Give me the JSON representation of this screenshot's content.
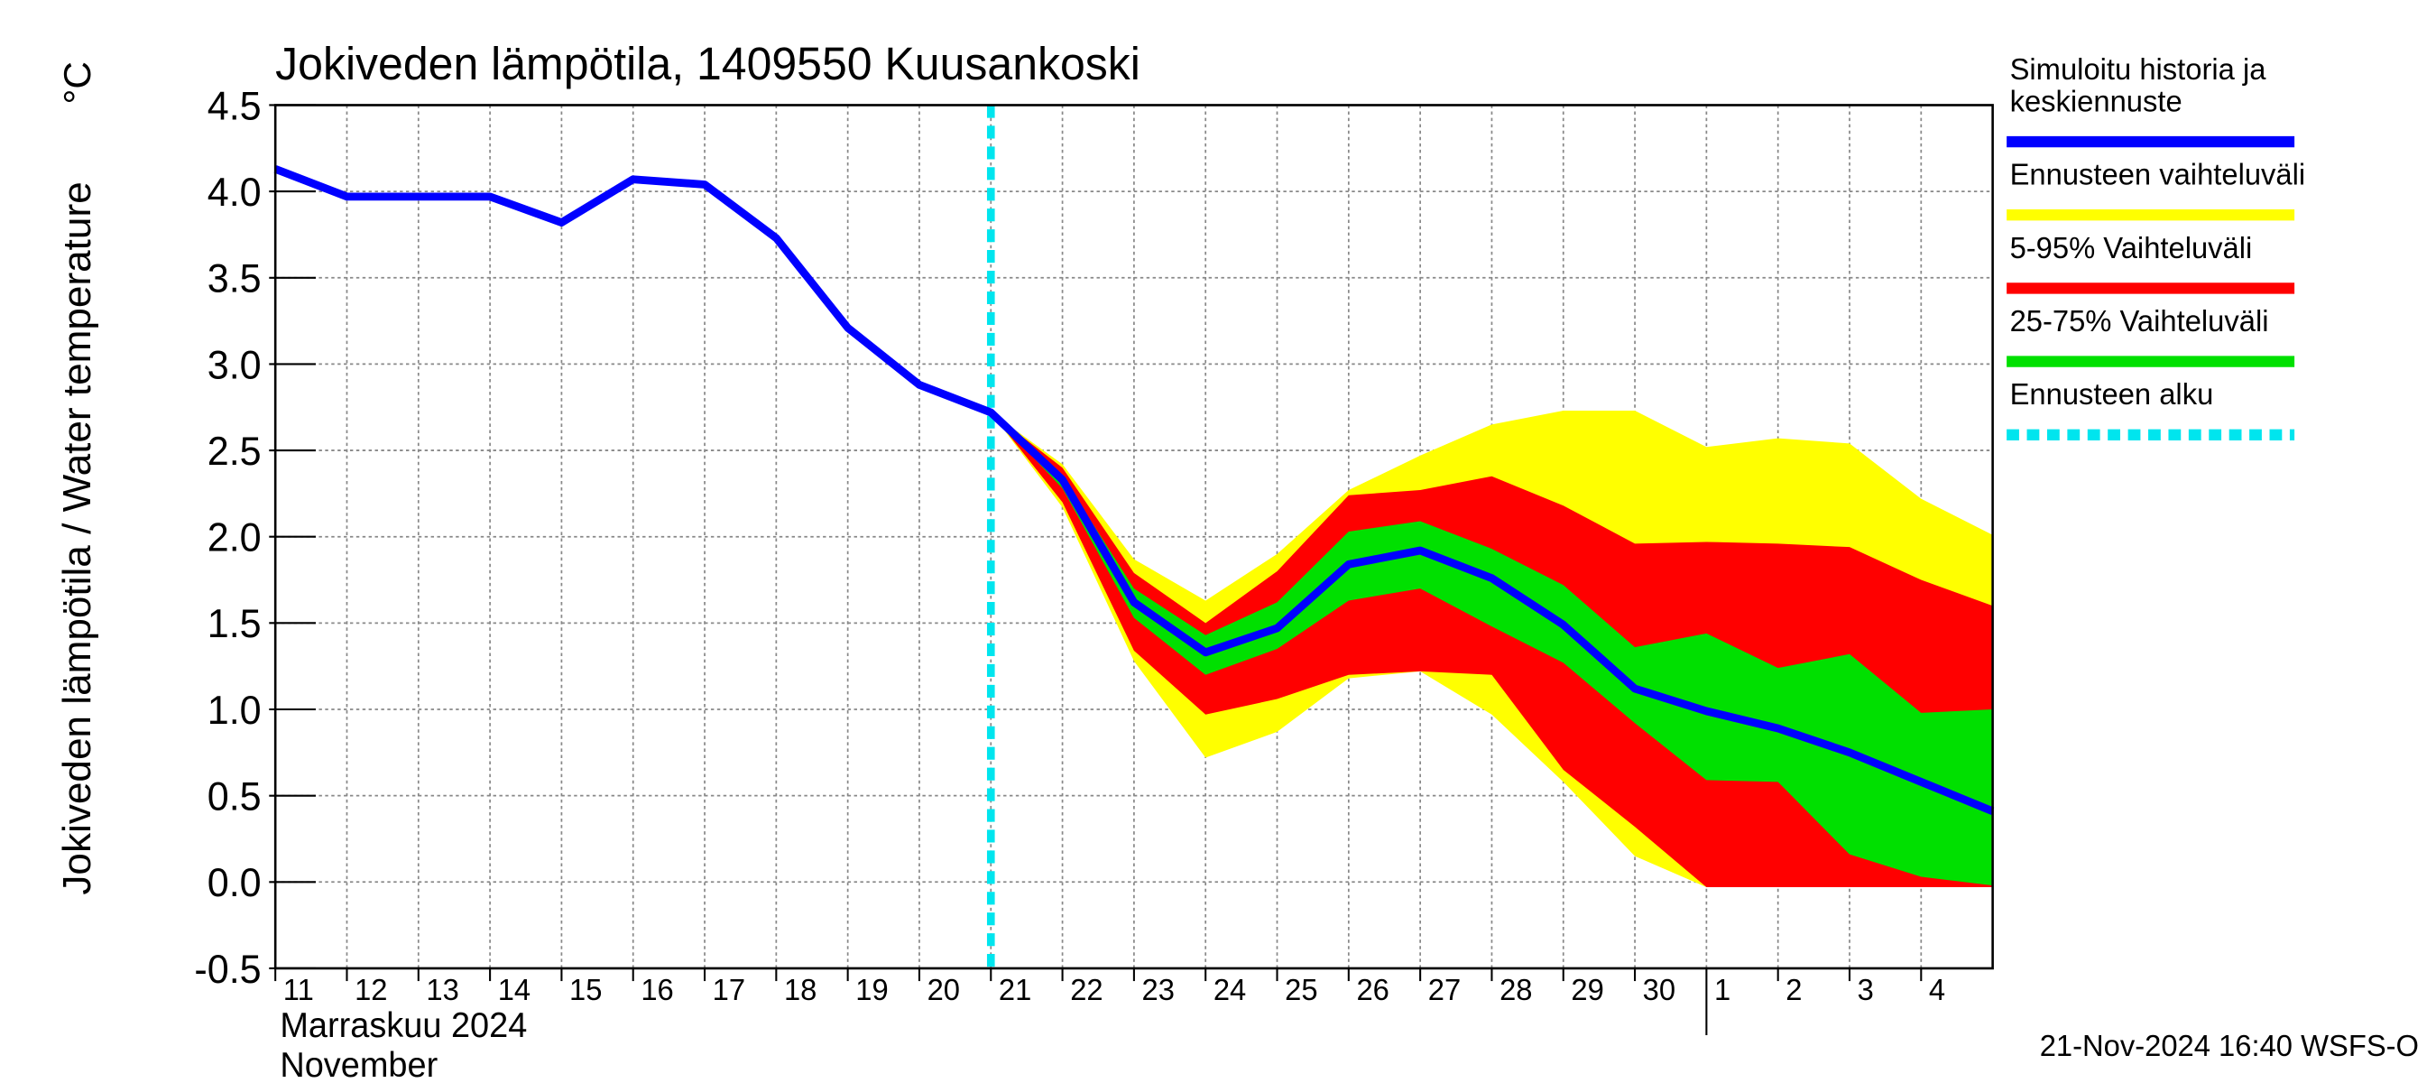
{
  "chart_data": {
    "type": "line",
    "title": "Jokiveden lämpötila, 1409550 Kuusankoski",
    "ylabel": "Jokiveden lämpötila / Water temperature",
    "yunit": "°C",
    "x_month_label": "Marraskuu 2024",
    "x_month_label_en": "November",
    "footer": "21-Nov-2024 16:40 WSFS-O",
    "x": [
      "2024-11-11",
      "2024-11-12",
      "2024-11-13",
      "2024-11-14",
      "2024-11-15",
      "2024-11-16",
      "2024-11-17",
      "2024-11-18",
      "2024-11-19",
      "2024-11-20",
      "2024-11-21",
      "2024-11-22",
      "2024-11-23",
      "2024-11-24",
      "2024-11-25",
      "2024-11-26",
      "2024-11-27",
      "2024-11-28",
      "2024-11-29",
      "2024-11-30",
      "2024-12-01",
      "2024-12-02",
      "2024-12-03",
      "2024-12-04",
      "2024-12-05"
    ],
    "xlim": [
      "2024-11-11",
      "2024-12-05"
    ],
    "xticks": [
      {
        "value": "2024-11-11",
        "label": "11"
      },
      {
        "value": "2024-11-12",
        "label": "12"
      },
      {
        "value": "2024-11-13",
        "label": "13"
      },
      {
        "value": "2024-11-14",
        "label": "14"
      },
      {
        "value": "2024-11-15",
        "label": "15"
      },
      {
        "value": "2024-11-16",
        "label": "16"
      },
      {
        "value": "2024-11-17",
        "label": "17"
      },
      {
        "value": "2024-11-18",
        "label": "18"
      },
      {
        "value": "2024-11-19",
        "label": "19"
      },
      {
        "value": "2024-11-20",
        "label": "20"
      },
      {
        "value": "2024-11-21",
        "label": "21"
      },
      {
        "value": "2024-11-22",
        "label": "22"
      },
      {
        "value": "2024-11-23",
        "label": "23"
      },
      {
        "value": "2024-11-24",
        "label": "24"
      },
      {
        "value": "2024-11-25",
        "label": "25"
      },
      {
        "value": "2024-11-26",
        "label": "26"
      },
      {
        "value": "2024-11-27",
        "label": "27"
      },
      {
        "value": "2024-11-28",
        "label": "28"
      },
      {
        "value": "2024-11-29",
        "label": "29"
      },
      {
        "value": "2024-11-30",
        "label": "30"
      },
      {
        "value": "2024-12-01",
        "label": "1"
      },
      {
        "value": "2024-12-02",
        "label": "2"
      },
      {
        "value": "2024-12-03",
        "label": "3"
      },
      {
        "value": "2024-12-04",
        "label": "4"
      }
    ],
    "ylim": [
      -0.5,
      4.5
    ],
    "yticks": [
      -0.5,
      {
        "value": 0,
        "label": "0.0"
      },
      0.5,
      {
        "value": 1,
        "label": "1.0"
      },
      1.5,
      {
        "value": 2,
        "label": "2.0"
      },
      2.5,
      {
        "value": 3,
        "label": "3.0"
      },
      3.5,
      {
        "value": 4,
        "label": "4.0"
      },
      4.5
    ],
    "grid": true,
    "bands": [
      {
        "name": "Ennusteen vaihteluväli",
        "color": "#ffff00",
        "upper": [
          null,
          null,
          null,
          null,
          null,
          null,
          null,
          null,
          null,
          null,
          2.72,
          2.42,
          1.87,
          1.63,
          1.9,
          2.27,
          2.47,
          2.65,
          2.73,
          2.73,
          2.52,
          2.57,
          2.54,
          2.22,
          2.01
        ],
        "lower": [
          null,
          null,
          null,
          null,
          null,
          null,
          null,
          null,
          null,
          null,
          2.72,
          2.17,
          1.28,
          0.72,
          0.87,
          1.18,
          1.22,
          0.97,
          0.58,
          0.15,
          -0.03,
          -0.03,
          -0.03,
          -0.03,
          -0.03
        ]
      },
      {
        "name": "5-95% Vaihteluväli",
        "color": "#ff0000",
        "upper": [
          null,
          null,
          null,
          null,
          null,
          null,
          null,
          null,
          null,
          null,
          2.72,
          2.4,
          1.79,
          1.5,
          1.8,
          2.24,
          2.27,
          2.35,
          2.18,
          1.96,
          1.97,
          1.96,
          1.94,
          1.75,
          1.6
        ],
        "lower": [
          null,
          null,
          null,
          null,
          null,
          null,
          null,
          null,
          null,
          null,
          2.72,
          2.2,
          1.34,
          0.97,
          1.06,
          1.2,
          1.22,
          1.2,
          0.65,
          0.32,
          -0.03,
          -0.03,
          -0.03,
          -0.03,
          -0.03
        ]
      },
      {
        "name": "25-75% Vaihteluväli",
        "color": "#00e000",
        "upper": [
          null,
          null,
          null,
          null,
          null,
          null,
          null,
          null,
          null,
          null,
          2.72,
          2.35,
          1.7,
          1.43,
          1.62,
          2.03,
          2.09,
          1.93,
          1.72,
          1.36,
          1.44,
          1.24,
          1.32,
          0.98,
          1.0
        ],
        "lower": [
          null,
          null,
          null,
          null,
          null,
          null,
          null,
          null,
          null,
          null,
          2.72,
          2.28,
          1.53,
          1.2,
          1.35,
          1.63,
          1.7,
          1.48,
          1.27,
          0.92,
          0.59,
          0.58,
          0.16,
          0.03,
          -0.02
        ]
      }
    ],
    "series": [
      {
        "name": "Simuloitu historia ja\nkeskiennuste",
        "color": "#0000ff",
        "values": [
          4.13,
          3.97,
          3.97,
          3.97,
          3.82,
          4.07,
          4.04,
          3.73,
          3.21,
          2.88,
          2.72,
          2.33,
          1.62,
          1.33,
          1.47,
          1.84,
          1.92,
          1.76,
          1.49,
          1.12,
          0.99,
          0.89,
          0.75,
          0.58,
          0.41
        ]
      }
    ],
    "forecast_start": {
      "name": "Ennusteen alku",
      "x": "2024-11-21",
      "color": "#00e5ee"
    }
  }
}
